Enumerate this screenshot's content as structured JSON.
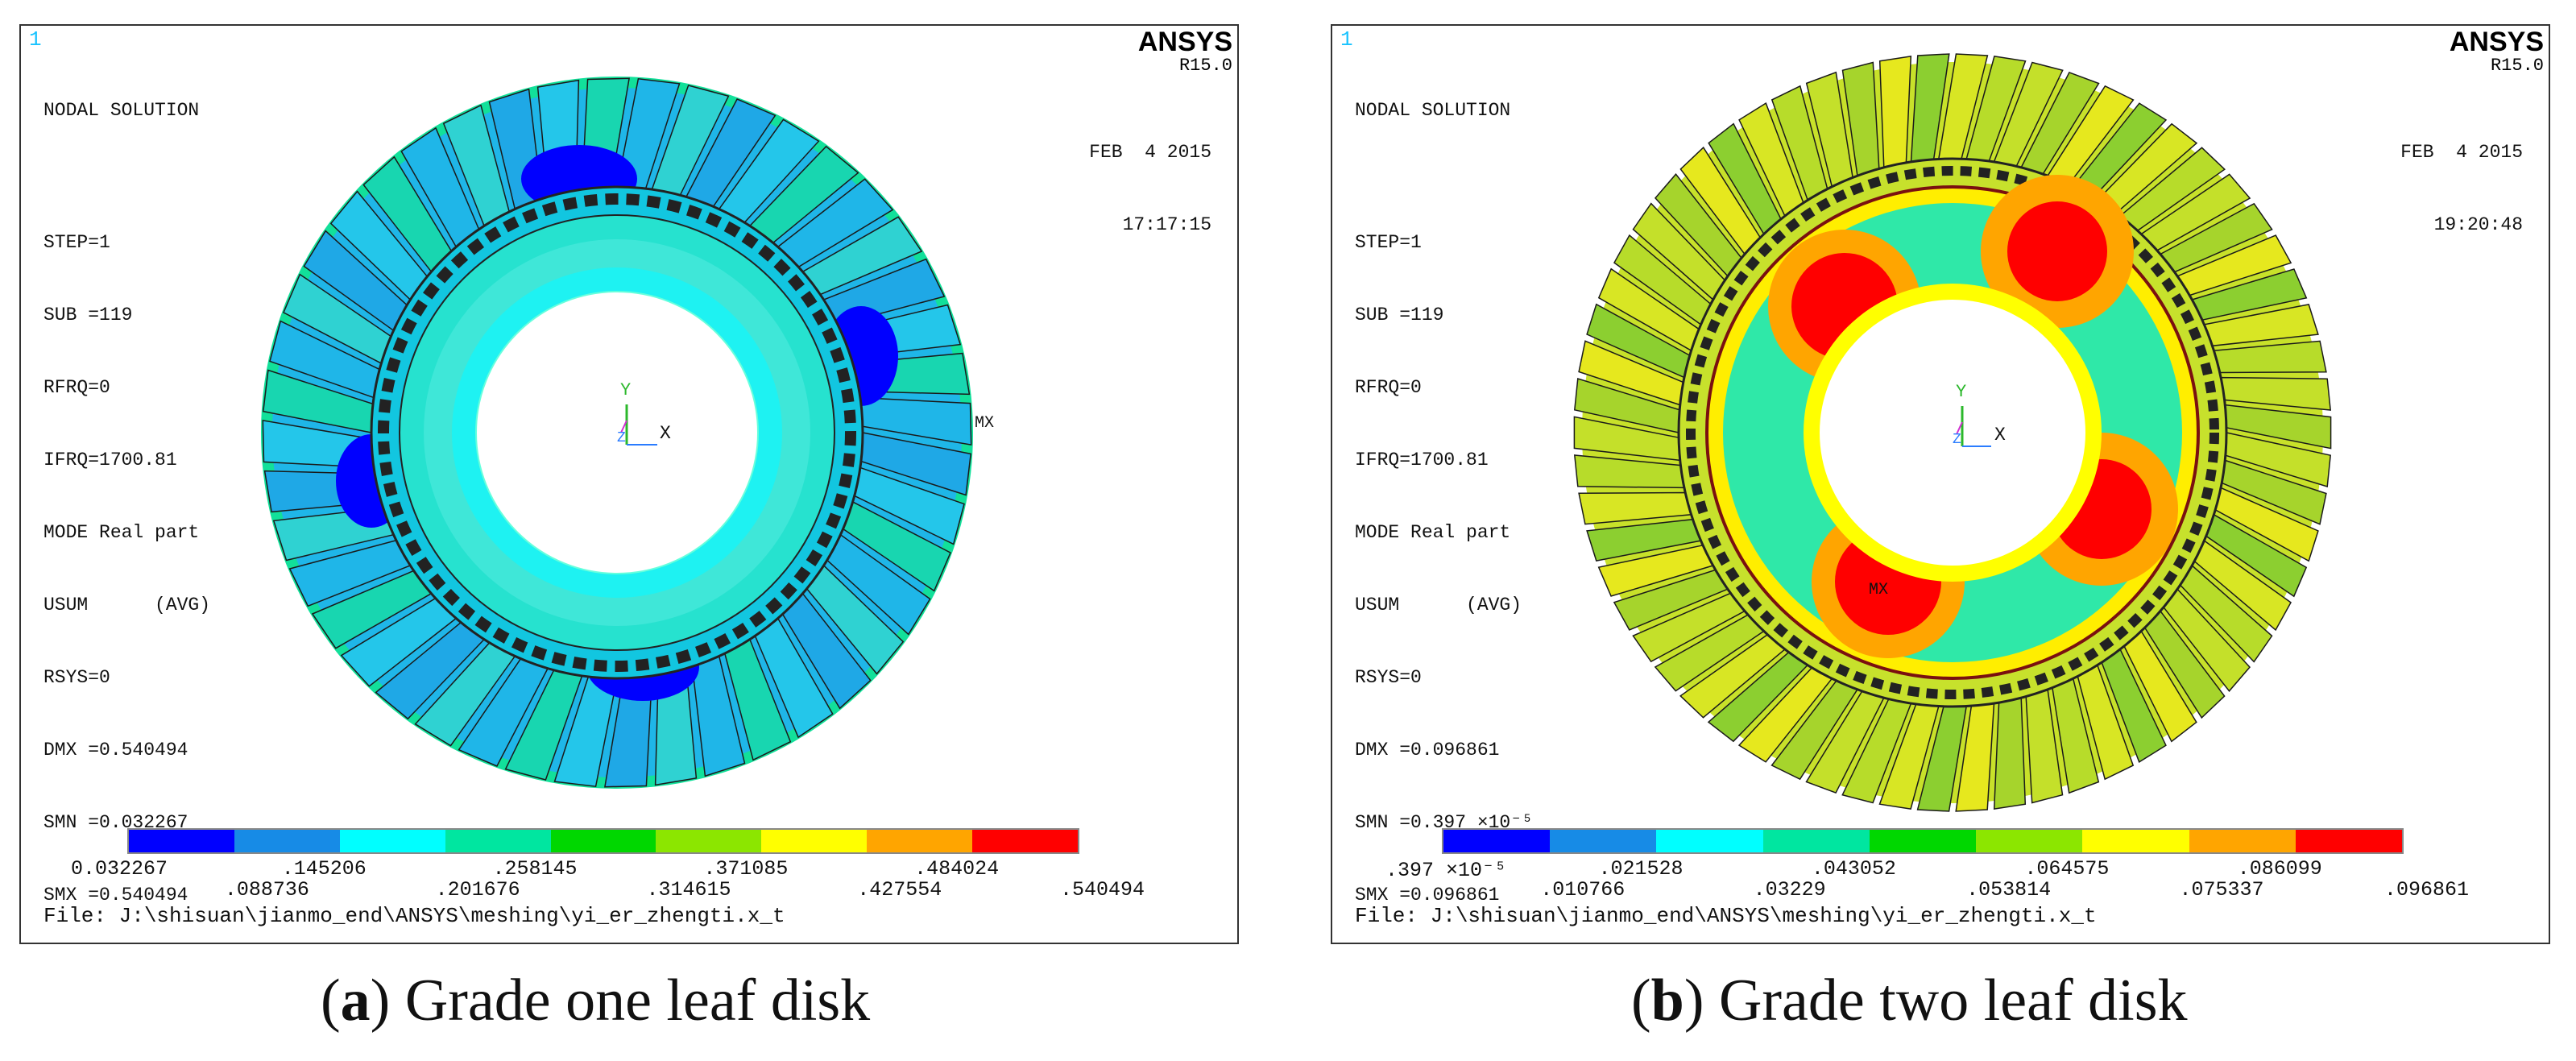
{
  "panel_a": {
    "index": "1",
    "brand": "ANSYS",
    "release": "R15.0",
    "date": "FEB  4 2015",
    "time": "17:17:15",
    "info": {
      "title": "NODAL SOLUTION",
      "step": "STEP=1",
      "sub": "SUB =119",
      "rfrq": "RFRQ=0",
      "ifrq": "IFRQ=1700.81",
      "mode": "MODE Real part",
      "usum": "USUM      (AVG)",
      "rsys": "RSYS=0",
      "dmx": "DMX =0.540494",
      "smn": "SMN =0.032267",
      "smx": "SMX =0.540494"
    },
    "axis_y": "Y",
    "axis_z": "Z",
    "axis_x": "X",
    "mx_label": "MX",
    "legend_top": [
      "0.032267",
      ".145206",
      ".258145",
      ".371085",
      ".484024"
    ],
    "legend_bottom": [
      ".088736",
      ".201676",
      ".314615",
      ".427554",
      ".540494"
    ],
    "file": "File: J:\\shisuan\\jianmo_end\\ANSYS\\meshing\\yi_er_zhengti.x_t",
    "caption_letter": "a",
    "caption_text": " Grade one leaf disk"
  },
  "panel_b": {
    "index": "1",
    "brand": "ANSYS",
    "release": "R15.0",
    "date": "FEB  4 2015",
    "time": "19:20:48",
    "info": {
      "title": "NODAL SOLUTION",
      "step": "STEP=1",
      "sub": "SUB =119",
      "rfrq": "RFRQ=0",
      "ifrq": "IFRQ=1700.81",
      "mode": "MODE Real part",
      "usum": "USUM      (AVG)",
      "rsys": "RSYS=0",
      "dmx": "DMX =0.096861",
      "smn": "SMN =0.397 ×10⁻⁵",
      "smx": "SMX =0.096861"
    },
    "axis_y": "Y",
    "axis_z": "Z",
    "axis_x": "X",
    "mx_label": "MX",
    "legend_top": [
      ".397 ×10⁻⁵",
      ".021528",
      ".043052",
      ".064575",
      ".086099"
    ],
    "legend_bottom": [
      ".010766",
      ".03229",
      ".053814",
      ".075337",
      ".096861"
    ],
    "file": "File: J:\\shisuan\\jianmo_end\\ANSYS\\meshing\\yi_er_zhengti.x_t",
    "caption_letter": "b",
    "caption_text": " Grade two leaf disk"
  },
  "legend_colors": [
    "#0000ff",
    "#178be6",
    "#00ffff",
    "#00e6a0",
    "#00d700",
    "#8ce600",
    "#ffff00",
    "#ffa500",
    "#ff0000"
  ]
}
